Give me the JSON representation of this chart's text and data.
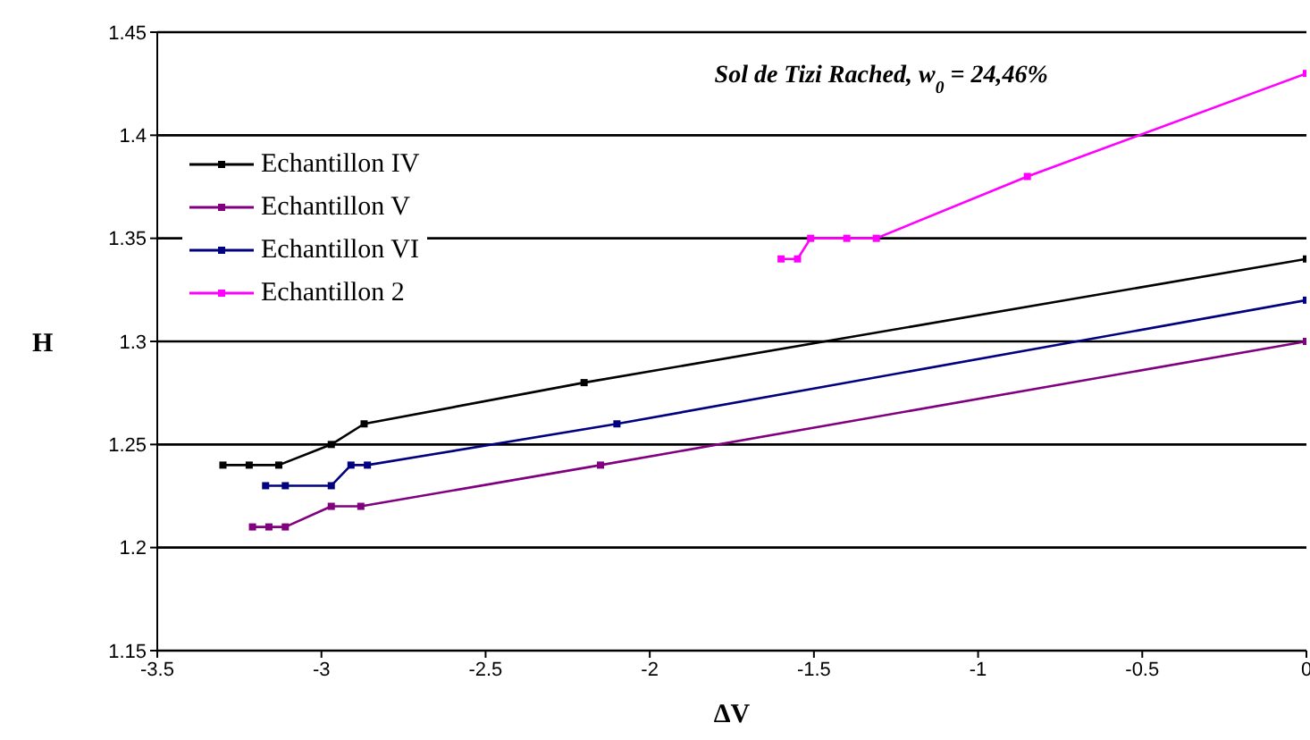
{
  "chart_data": {
    "type": "line",
    "title": "Sol de Tizi Rached, w$_{0}$ = 24,46%",
    "xlabel": "ΔV",
    "ylabel": "H",
    "xlim": [
      -3.5,
      0
    ],
    "xticks": [
      -3.5,
      -3,
      -2.5,
      -2,
      -1.5,
      -1,
      -0.5,
      0
    ],
    "ylim": [
      1.15,
      1.45
    ],
    "yticks": [
      1.15,
      1.2,
      1.25,
      1.3,
      1.35,
      1.4,
      1.45
    ],
    "grid": "y",
    "legend": "top left",
    "marker": "square",
    "line_style": "solid",
    "series": [
      {
        "name": "Echantillon IV",
        "color": "#000000",
        "x": [
          -3.3,
          -3.22,
          -3.13,
          -2.97,
          -2.87,
          -2.2,
          0
        ],
        "values": [
          1.24,
          1.24,
          1.24,
          1.25,
          1.26,
          1.28,
          1.34
        ]
      },
      {
        "name": "Echantillon V",
        "color": "#800080",
        "x": [
          -3.21,
          -3.16,
          -3.11,
          -2.97,
          -2.88,
          -2.15,
          0
        ],
        "values": [
          1.21,
          1.21,
          1.21,
          1.22,
          1.22,
          1.24,
          1.3
        ]
      },
      {
        "name": "Echantillon VI",
        "color": "#000080",
        "x": [
          -3.17,
          -3.11,
          -2.97,
          -2.91,
          -2.86,
          -2.1,
          0
        ],
        "values": [
          1.23,
          1.23,
          1.23,
          1.24,
          1.24,
          1.26,
          1.32
        ]
      },
      {
        "name": "Echantillon 2",
        "color": "#ff00ff",
        "x": [
          -1.6,
          -1.55,
          -1.51,
          -1.4,
          -1.31,
          -0.85,
          0
        ],
        "values": [
          1.34,
          1.34,
          1.35,
          1.35,
          1.35,
          1.38,
          1.43
        ]
      }
    ]
  }
}
